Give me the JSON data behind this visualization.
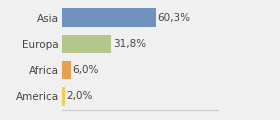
{
  "categories": [
    "Asia",
    "Europa",
    "Africa",
    "America"
  ],
  "values": [
    60.3,
    31.8,
    6.0,
    2.0
  ],
  "labels": [
    "60,3%",
    "31,8%",
    "6,0%",
    "2,0%"
  ],
  "bar_colors": [
    "#7092be",
    "#b5c68a",
    "#e6a050",
    "#e8d050"
  ],
  "background_color": "#f0f0f0",
  "xlim": [
    0,
    100
  ],
  "label_fontsize": 7.5,
  "tick_fontsize": 7.5,
  "bar_height": 0.7
}
